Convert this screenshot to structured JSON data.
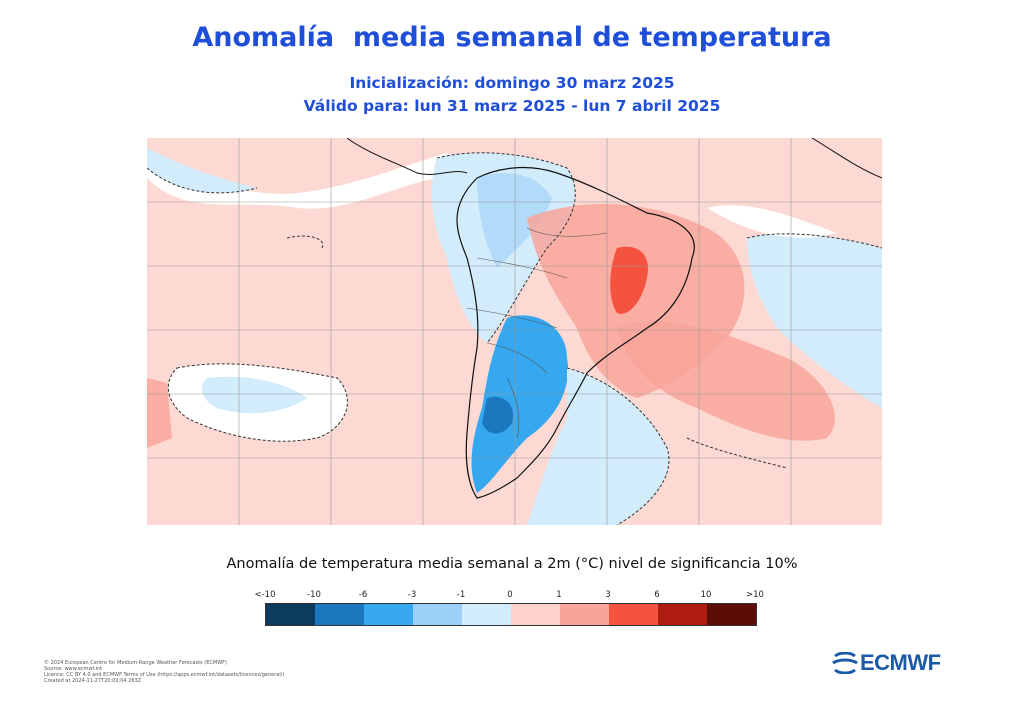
{
  "title": "Anomalía  media semanal de temperatura",
  "subtitle_init": "Inicialización: domingo 30 marz 2025",
  "subtitle_valid": "Válido para: lun 31 marz 2025 - lun 7 abril 2025",
  "colorbar": {
    "title": "Anomalía de temperatura media semanal a 2m (°C) nivel de significancia 10%",
    "labels": [
      "<-10",
      "-10",
      "-6",
      "-3",
      "-1",
      "0",
      "1",
      "3",
      "6",
      "10",
      ">10"
    ],
    "colors": [
      "#0b3b5e",
      "#1b78be",
      "#35a8f0",
      "#9bd1f7",
      "#d3ecfc",
      "#fdd2cd",
      "#f8a49a",
      "#f4533f",
      "#ae1b10",
      "#5e0c06"
    ]
  },
  "map": {
    "region": "South America",
    "land_color": "#f2f2f2",
    "ocean_color": "#e8f4fb",
    "contour_style": "dashed",
    "coastline_color": "#111111"
  },
  "footer": [
    "© 2024 European Centre for Medium-Range Weather Forecasts (ECMWF)",
    "Source: www.ecmwf.int",
    "Licence: CC BY 4.0 and ECMWF Terms of Use (https://apps.ecmwf.int/datasets/licences/general/)",
    "Created at 2024-11-27T20:02:04.263Z"
  ],
  "logo": {
    "text": "ECMWF",
    "color": "#1a5aa8"
  }
}
